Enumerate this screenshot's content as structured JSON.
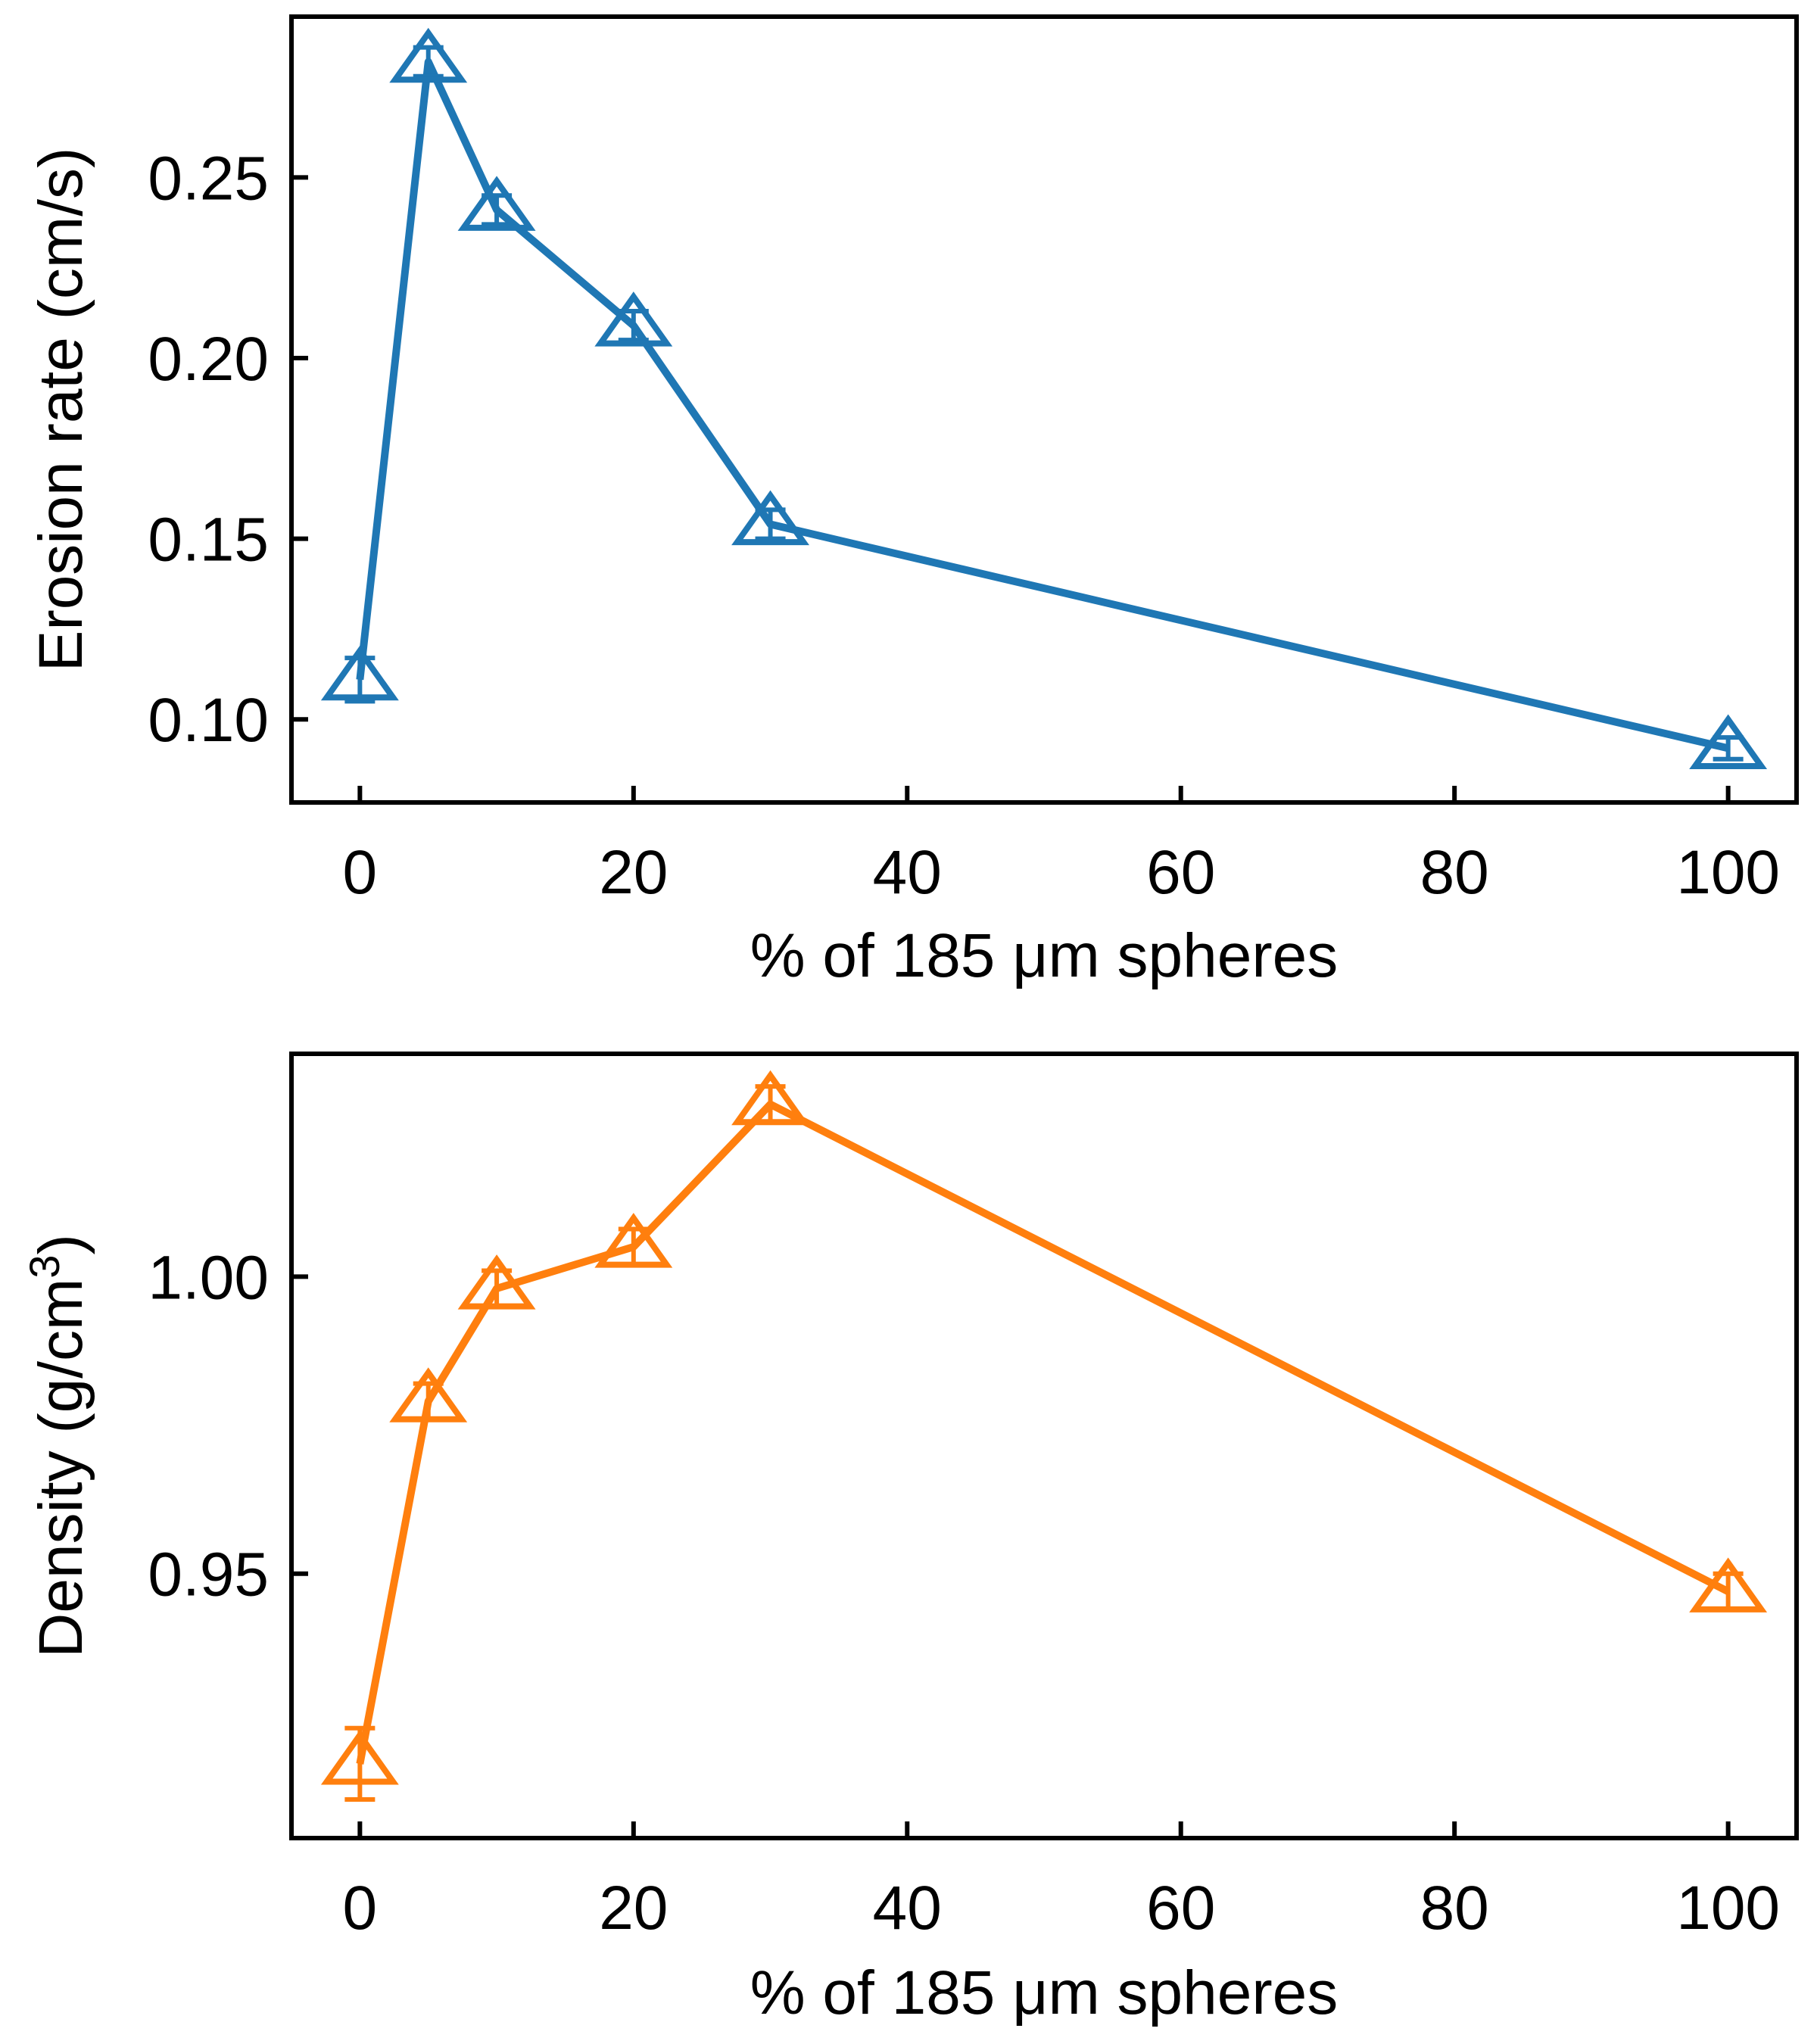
{
  "chart_data": [
    {
      "type": "line",
      "xlabel": "% of 185 μm spheres",
      "ylabel": "Erosion rate (cm/s)",
      "xlim": [
        -5,
        105
      ],
      "ylim": [
        0.077,
        0.2945
      ],
      "xticks": [
        0,
        20,
        40,
        60,
        80,
        100
      ],
      "xtick_labels": [
        "0",
        "20",
        "40",
        "60",
        "80",
        "100"
      ],
      "yticks": [
        0.1,
        0.15,
        0.2,
        0.25
      ],
      "ytick_labels": [
        "0.10",
        "0.15",
        "0.20",
        "0.25"
      ],
      "color": "#1f77b4",
      "marker": "open-triangle",
      "grid": false,
      "series": [
        {
          "x": [
            0,
            5,
            10,
            20,
            30,
            100
          ],
          "y": [
            0.111,
            0.282,
            0.241,
            0.209,
            0.154,
            0.092
          ],
          "err": [
            0.006,
            0.004,
            0.004,
            0.004,
            0.004,
            0.003
          ]
        }
      ]
    },
    {
      "type": "line",
      "xlabel": "% of 185 μm spheres",
      "ylabel": "Density (g/cm",
      "ylabel_sup": "3",
      "ylabel_end": ")",
      "xlim": [
        -5,
        105
      ],
      "ylim": [
        0.9055,
        1.0375
      ],
      "xticks": [
        0,
        20,
        40,
        60,
        80,
        100
      ],
      "xtick_labels": [
        "0",
        "20",
        "40",
        "60",
        "80",
        "100"
      ],
      "yticks": [
        0.95,
        1.0
      ],
      "ytick_labels": [
        "0.95",
        "1.00"
      ],
      "color": "#ff7f0e",
      "marker": "open-triangle",
      "grid": false,
      "series": [
        {
          "x": [
            0,
            5,
            10,
            20,
            30,
            100
          ],
          "y": [
            0.918,
            0.979,
            0.998,
            1.005,
            1.029,
            0.947
          ],
          "err": [
            0.006,
            0.003,
            0.003,
            0.003,
            0.003,
            0.003
          ]
        }
      ]
    }
  ]
}
